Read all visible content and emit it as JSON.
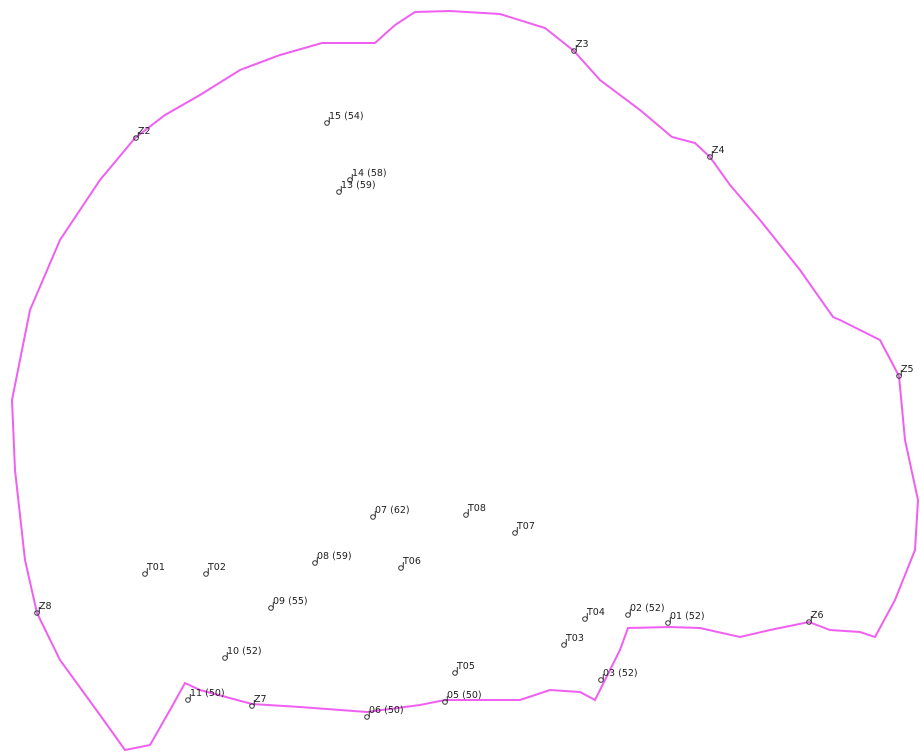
{
  "points": [
    {
      "label": "Z3"
    },
    {
      "label": "Z4"
    },
    {
      "label": "Z2"
    },
    {
      "label": "15 (54)"
    },
    {
      "label": "14 (58)"
    },
    {
      "label": "13 (59)"
    },
    {
      "label": "Z5"
    },
    {
      "label": "07 (62)"
    },
    {
      "label": "T08"
    },
    {
      "label": "T07"
    },
    {
      "label": "08 (59)"
    },
    {
      "label": "T06"
    },
    {
      "label": "T01"
    },
    {
      "label": "T02"
    },
    {
      "label": "Z8"
    },
    {
      "label": "09 (55)"
    },
    {
      "label": "T04"
    },
    {
      "label": "02 (52)"
    },
    {
      "label": "01 (52)"
    },
    {
      "label": "Z6"
    },
    {
      "label": "T03"
    },
    {
      "label": "10 (52)"
    },
    {
      "label": "T05"
    },
    {
      "label": "03 (52)"
    },
    {
      "label": "11 (50)"
    },
    {
      "label": "Z7"
    },
    {
      "label": "06 (50)"
    },
    {
      "label": "05 (50)"
    }
  ]
}
